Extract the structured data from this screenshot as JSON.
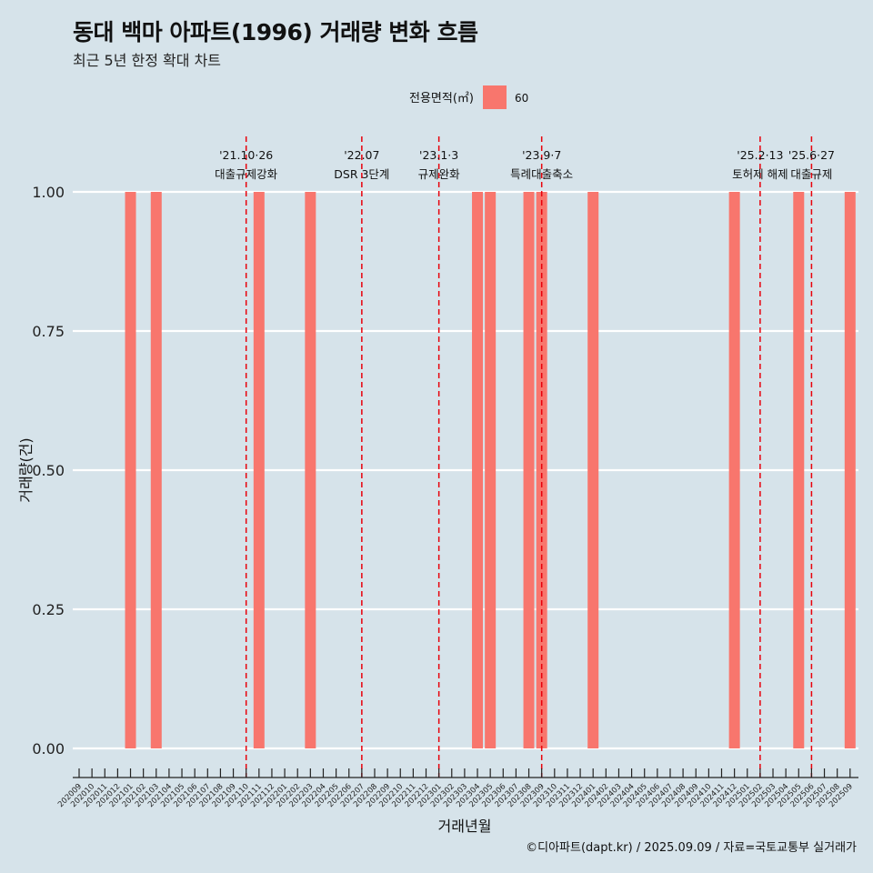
{
  "chart_data": {
    "type": "bar",
    "title": "동대 백마 아파트(1996) 거래량 변화 흐름",
    "subtitle": "최근 5년 한정 확대 차트",
    "xlabel": "거래년월",
    "ylabel": "거래량(건)",
    "ylim": [
      0,
      1
    ],
    "yticks": [
      "0.00",
      "0.25",
      "0.50",
      "0.75",
      "1.00"
    ],
    "legend": {
      "title": "전용면적(㎡)",
      "entries": [
        "60"
      ],
      "placement": "top"
    },
    "categories": [
      "202009",
      "202010",
      "202011",
      "202012",
      "202101",
      "202102",
      "202103",
      "202104",
      "202105",
      "202106",
      "202107",
      "202108",
      "202109",
      "202110",
      "202111",
      "202112",
      "202201",
      "202202",
      "202203",
      "202204",
      "202205",
      "202206",
      "202207",
      "202208",
      "202209",
      "202210",
      "202211",
      "202212",
      "202301",
      "202302",
      "202303",
      "202304",
      "202305",
      "202306",
      "202307",
      "202308",
      "202309",
      "202310",
      "202311",
      "202312",
      "202401",
      "202402",
      "202403",
      "202404",
      "202405",
      "202406",
      "202407",
      "202408",
      "202409",
      "202410",
      "202411",
      "202412",
      "202501",
      "202502",
      "202503",
      "202504",
      "202505",
      "202506",
      "202507",
      "202508",
      "202509"
    ],
    "series": [
      {
        "name": "60",
        "color": "#f8766d",
        "values": [
          0,
          0,
          0,
          0,
          1,
          0,
          1,
          0,
          0,
          0,
          0,
          0,
          0,
          0,
          1,
          0,
          0,
          0,
          1,
          0,
          0,
          0,
          0,
          0,
          0,
          0,
          0,
          0,
          0,
          0,
          0,
          1,
          1,
          0,
          0,
          1,
          1,
          0,
          0,
          0,
          1,
          0,
          0,
          0,
          0,
          0,
          0,
          0,
          0,
          0,
          0,
          1,
          0,
          0,
          0,
          0,
          1,
          0,
          0,
          0,
          1
        ]
      }
    ],
    "annotations": [
      {
        "date": "'21.10·26",
        "label": "대출규제강화",
        "month": "202110"
      },
      {
        "date": "'22.07",
        "label": "DSR 3단계",
        "month": "202207"
      },
      {
        "date": "'23.1·3",
        "label": "규제완화",
        "month": "202301"
      },
      {
        "date": "'23.9·7",
        "label": "특례대출축소",
        "month": "202309"
      },
      {
        "date": "'25.2·13",
        "label": "토허제 해제",
        "month": "202502"
      },
      {
        "date": "'25.6·27",
        "label": "대출규제",
        "month": "202506"
      }
    ],
    "grid": true
  },
  "footer": {
    "credit": "©디아파트(dapt.kr) / 2025.09.09 / 자료=국토교통부 실거래가"
  },
  "colors": {
    "bar": "#f8766d",
    "event_line": "#e8000b",
    "background": "#d6e3ea",
    "grid": "#ffffff"
  }
}
